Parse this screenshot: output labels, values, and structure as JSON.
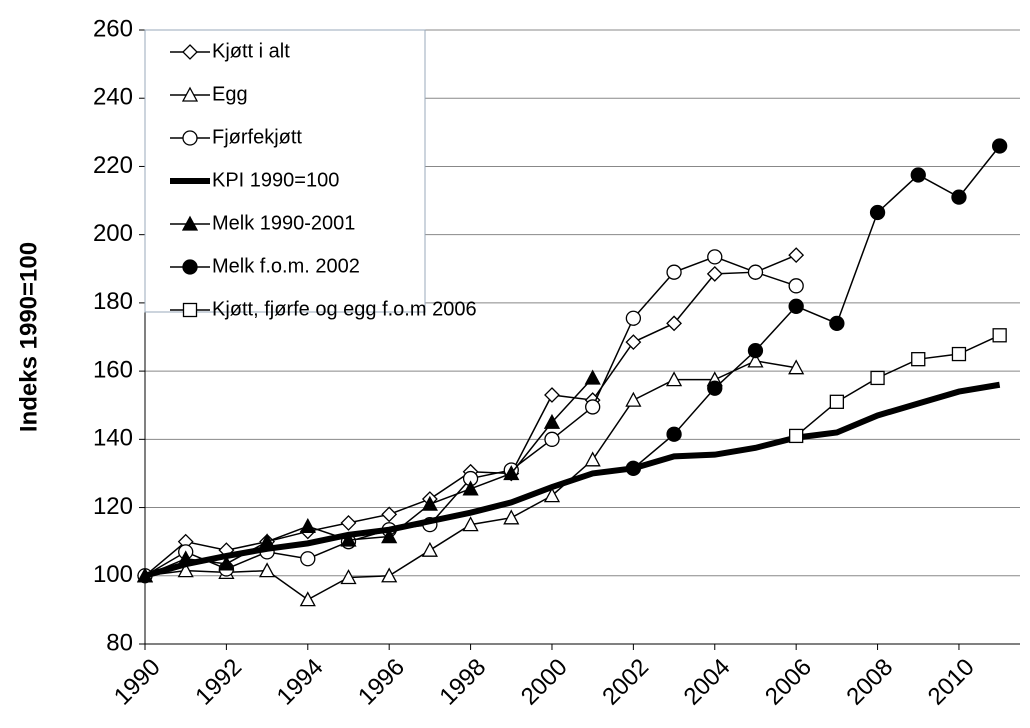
{
  "chart_data": {
    "type": "line",
    "ylabel": "Indeks 1990=100",
    "x": [
      1990,
      1991,
      1992,
      1993,
      1994,
      1995,
      1996,
      1997,
      1998,
      1999,
      2000,
      2001,
      2002,
      2003,
      2004,
      2005,
      2006,
      2007,
      2008,
      2009,
      2010,
      2011
    ],
    "xlim": [
      1990,
      2011.5
    ],
    "xticks": [
      1990,
      1992,
      1994,
      1996,
      1998,
      2000,
      2002,
      2004,
      2006,
      2008,
      2010
    ],
    "ylim": [
      80,
      260
    ],
    "yticks": [
      80,
      100,
      120,
      140,
      160,
      180,
      200,
      220,
      240,
      260
    ],
    "grid": true,
    "legend": "upper left",
    "series": [
      {
        "name": "Kjøtt i alt",
        "color": "#000000",
        "marker": "diamond",
        "filled": false,
        "values": [
          100,
          110,
          107.5,
          110,
          113,
          115.5,
          118,
          122.5,
          130.5,
          130,
          153,
          151.5,
          168.5,
          174,
          188.5,
          189,
          194,
          null,
          null,
          null,
          null,
          null
        ]
      },
      {
        "name": "Egg",
        "color": "#000000",
        "marker": "triangle",
        "filled": false,
        "values": [
          100,
          101.5,
          101,
          101.5,
          93,
          99.5,
          100,
          107.5,
          115,
          117,
          123.5,
          134,
          151.5,
          157.5,
          157.5,
          163,
          161,
          null,
          null,
          null,
          null,
          null
        ]
      },
      {
        "name": "Fjørfekjøtt",
        "color": "#000000",
        "marker": "circle",
        "filled": false,
        "values": [
          100,
          107,
          102,
          107,
          105,
          110,
          113.5,
          115,
          128.5,
          131,
          140,
          149.5,
          175.5,
          189,
          193.5,
          189,
          185,
          null,
          null,
          null,
          null,
          null
        ]
      },
      {
        "name": "KPI 1990=100",
        "color": "#000000",
        "marker": "none",
        "bold": true,
        "values": [
          100,
          103.4,
          105.8,
          107.9,
          109.5,
          112,
          113.5,
          116,
          118.5,
          121.5,
          126,
          130,
          131.5,
          135,
          135.5,
          137.5,
          140.5,
          142,
          147,
          150.5,
          154,
          156
        ]
      },
      {
        "name": "Melk 1990-2001",
        "color": "#000000",
        "marker": "triangle",
        "filled": true,
        "values": [
          100,
          105,
          103.5,
          110,
          114.5,
          110.5,
          111.5,
          121,
          125.5,
          130,
          145,
          158,
          null,
          null,
          null,
          null,
          null,
          null,
          null,
          null,
          null,
          null
        ]
      },
      {
        "name": "Melk f.o.m. 2002",
        "color": "#000000",
        "marker": "circle",
        "filled": true,
        "values": [
          null,
          null,
          null,
          null,
          null,
          null,
          null,
          null,
          null,
          null,
          null,
          null,
          131.5,
          141.5,
          155,
          166,
          179,
          174,
          206.5,
          217.5,
          211,
          226
        ]
      },
      {
        "name": "Kjøtt, fjørfe og egg f.o.m 2006",
        "color": "#000000",
        "marker": "square",
        "filled": false,
        "values": [
          null,
          null,
          null,
          null,
          null,
          null,
          null,
          null,
          null,
          null,
          null,
          null,
          null,
          null,
          null,
          null,
          141,
          151,
          158,
          163.5,
          165,
          170.5
        ]
      }
    ]
  }
}
